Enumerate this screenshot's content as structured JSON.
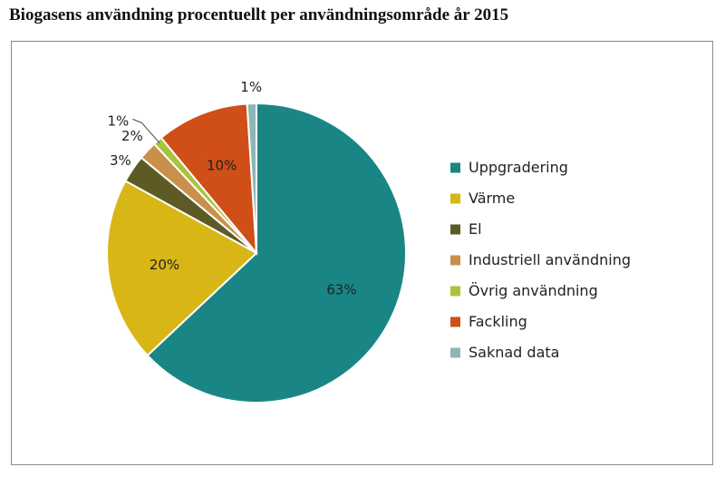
{
  "title": "Biogasens användning procentuellt per användningsområde år 2015",
  "chart_data": {
    "type": "pie",
    "title": "Biogasens användning procentuellt per användningsområde år 2015",
    "legend_position": "right",
    "slices": [
      {
        "label": "Uppgradering",
        "value": 63,
        "display": "63%",
        "color": "#1a8585"
      },
      {
        "label": "Värme",
        "value": 20,
        "display": "20%",
        "color": "#d8b616"
      },
      {
        "label": "El",
        "value": 3,
        "display": "3%",
        "color": "#5e5a25"
      },
      {
        "label": "Industriell användning",
        "value": 2,
        "display": "2%",
        "color": "#c8904a"
      },
      {
        "label": "Övrig användning",
        "value": 1,
        "display": "1%",
        "color": "#a8c43c"
      },
      {
        "label": "Fackling",
        "value": 10,
        "display": "10%",
        "color": "#d04e18"
      },
      {
        "label": "Saknad data",
        "value": 1,
        "display": "1%",
        "color": "#8fb6b6"
      }
    ]
  }
}
